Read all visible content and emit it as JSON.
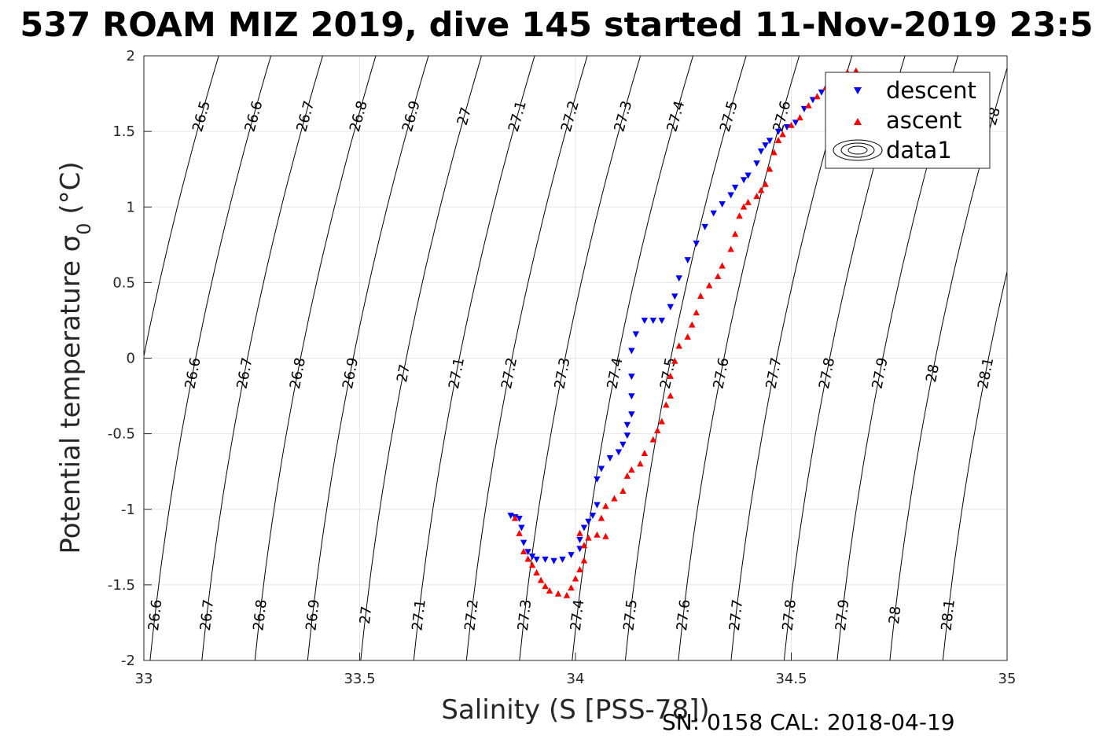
{
  "chart_data": {
    "type": "scatter",
    "title": "537 ROAM MIZ 2019, dive 145 started 11-Nov-2019 23:5",
    "xlabel": "Salinity (S [PSS-78])",
    "ylabel_main": "Potential temperature ",
    "ylabel_sym": "σ",
    "ylabel_sub": "0",
    "ylabel_unit": " (°C)",
    "xlim": [
      33,
      35
    ],
    "ylim": [
      -2,
      2
    ],
    "x_ticks": [
      "33",
      "33.5",
      "34",
      "34.5",
      "35"
    ],
    "y_ticks": [
      "2",
      "1.5",
      "1",
      "0.5",
      "0",
      "-0.5",
      "-1",
      "-1.5",
      "-2"
    ],
    "grid": true,
    "legend_position": "top-right",
    "footer": "SN: 0158  CAL: 2018-04-19",
    "colors": {
      "descent": "#0000ff",
      "ascent": "#ff0000",
      "contour": "#000000",
      "grid": "#e6e6e6"
    },
    "contours": {
      "levels": [
        "26.5",
        "26.6",
        "26.7",
        "26.8",
        "26.9",
        "27",
        "27.1",
        "27.2",
        "27.3",
        "27.4",
        "27.5",
        "27.6",
        "27.7",
        "27.8",
        "27.9",
        "28",
        "28.1"
      ],
      "x_at_zero": [
        32.999,
        33.12,
        33.24,
        33.363,
        33.485,
        33.608,
        33.731,
        33.853,
        33.976,
        34.098,
        34.221,
        34.344,
        34.466,
        34.589,
        34.712,
        34.834,
        34.957
      ]
    },
    "series": [
      {
        "name": "descent",
        "marker": "triangle-down",
        "color": "#0000ff",
        "points": [
          [
            33.85,
            -1.04
          ],
          [
            33.86,
            -1.05
          ],
          [
            33.87,
            -1.06
          ],
          [
            33.875,
            -1.12
          ],
          [
            33.88,
            -1.22
          ],
          [
            33.89,
            -1.28
          ],
          [
            33.9,
            -1.31
          ],
          [
            33.91,
            -1.33
          ],
          [
            33.93,
            -1.33
          ],
          [
            33.95,
            -1.34
          ],
          [
            33.97,
            -1.33
          ],
          [
            33.99,
            -1.3
          ],
          [
            34.01,
            -1.26
          ],
          [
            34.01,
            -1.2
          ],
          [
            34.02,
            -1.12
          ],
          [
            34.03,
            -1.08
          ],
          [
            34.04,
            -1.04
          ],
          [
            34.05,
            -0.97
          ],
          [
            34.05,
            -0.8
          ],
          [
            34.06,
            -0.73
          ],
          [
            34.08,
            -0.66
          ],
          [
            34.1,
            -0.62
          ],
          [
            34.11,
            -0.57
          ],
          [
            34.12,
            -0.51
          ],
          [
            34.12,
            -0.44
          ],
          [
            34.13,
            -0.37
          ],
          [
            34.13,
            -0.25
          ],
          [
            34.13,
            -0.12
          ],
          [
            34.13,
            0.05
          ],
          [
            34.14,
            0.16
          ],
          [
            34.16,
            0.25
          ],
          [
            34.18,
            0.25
          ],
          [
            34.2,
            0.25
          ],
          [
            34.22,
            0.34
          ],
          [
            34.23,
            0.41
          ],
          [
            34.24,
            0.53
          ],
          [
            34.26,
            0.65
          ],
          [
            34.28,
            0.76
          ],
          [
            34.3,
            0.87
          ],
          [
            34.32,
            0.96
          ],
          [
            34.34,
            1.02
          ],
          [
            34.36,
            1.08
          ],
          [
            34.37,
            1.13
          ],
          [
            34.39,
            1.18
          ],
          [
            34.4,
            1.21
          ],
          [
            34.42,
            1.29
          ],
          [
            34.43,
            1.37
          ],
          [
            34.44,
            1.41
          ],
          [
            34.45,
            1.44
          ],
          [
            34.47,
            1.5
          ],
          [
            34.49,
            1.53
          ],
          [
            34.51,
            1.56
          ],
          [
            34.53,
            1.65
          ],
          [
            34.55,
            1.71
          ],
          [
            34.57,
            1.76
          ],
          [
            34.59,
            1.79
          ],
          [
            34.61,
            1.82
          ],
          [
            34.62,
            1.85
          ],
          [
            34.64,
            1.86
          ]
        ]
      },
      {
        "name": "ascent",
        "marker": "triangle-up",
        "color": "#ff0000",
        "points": [
          [
            33.86,
            -1.06
          ],
          [
            33.87,
            -1.16
          ],
          [
            33.88,
            -1.28
          ],
          [
            33.89,
            -1.33
          ],
          [
            33.9,
            -1.37
          ],
          [
            33.91,
            -1.42
          ],
          [
            33.92,
            -1.47
          ],
          [
            33.93,
            -1.51
          ],
          [
            33.94,
            -1.54
          ],
          [
            33.96,
            -1.56
          ],
          [
            33.98,
            -1.57
          ],
          [
            33.99,
            -1.52
          ],
          [
            34.0,
            -1.46
          ],
          [
            34.01,
            -1.4
          ],
          [
            34.02,
            -1.34
          ],
          [
            34.02,
            -1.24
          ],
          [
            34.01,
            -1.16
          ],
          [
            34.03,
            -1.19
          ],
          [
            34.05,
            -1.17
          ],
          [
            34.07,
            -1.18
          ],
          [
            34.06,
            -1.06
          ],
          [
            34.07,
            -0.98
          ],
          [
            34.09,
            -0.93
          ],
          [
            34.11,
            -0.88
          ],
          [
            34.12,
            -0.78
          ],
          [
            34.13,
            -0.74
          ],
          [
            34.15,
            -0.7
          ],
          [
            34.16,
            -0.63
          ],
          [
            34.18,
            -0.54
          ],
          [
            34.19,
            -0.48
          ],
          [
            34.2,
            -0.42
          ],
          [
            34.21,
            -0.31
          ],
          [
            34.22,
            -0.25
          ],
          [
            34.22,
            -0.12
          ],
          [
            34.23,
            -0.02
          ],
          [
            34.24,
            0.08
          ],
          [
            34.26,
            0.14
          ],
          [
            34.27,
            0.22
          ],
          [
            34.28,
            0.3
          ],
          [
            34.29,
            0.41
          ],
          [
            34.31,
            0.48
          ],
          [
            34.33,
            0.54
          ],
          [
            34.34,
            0.61
          ],
          [
            34.36,
            0.72
          ],
          [
            34.37,
            0.82
          ],
          [
            34.38,
            0.94
          ],
          [
            34.39,
            1.0
          ],
          [
            34.4,
            1.03
          ],
          [
            34.42,
            1.07
          ],
          [
            34.43,
            1.11
          ],
          [
            34.44,
            1.15
          ],
          [
            34.45,
            1.25
          ],
          [
            34.46,
            1.36
          ],
          [
            34.47,
            1.44
          ],
          [
            34.48,
            1.48
          ],
          [
            34.5,
            1.54
          ],
          [
            34.52,
            1.59
          ],
          [
            34.54,
            1.67
          ],
          [
            34.56,
            1.73
          ],
          [
            34.58,
            1.79
          ],
          [
            34.6,
            1.83
          ],
          [
            34.62,
            1.87
          ],
          [
            34.63,
            1.89
          ],
          [
            34.65,
            1.9
          ]
        ]
      }
    ],
    "legend": [
      {
        "label": "descent",
        "marker": "triangle-down",
        "color": "#0000ff"
      },
      {
        "label": "ascent",
        "marker": "triangle-up",
        "color": "#ff0000"
      },
      {
        "label": "data1",
        "marker": "contour",
        "color": "#000000"
      }
    ]
  }
}
